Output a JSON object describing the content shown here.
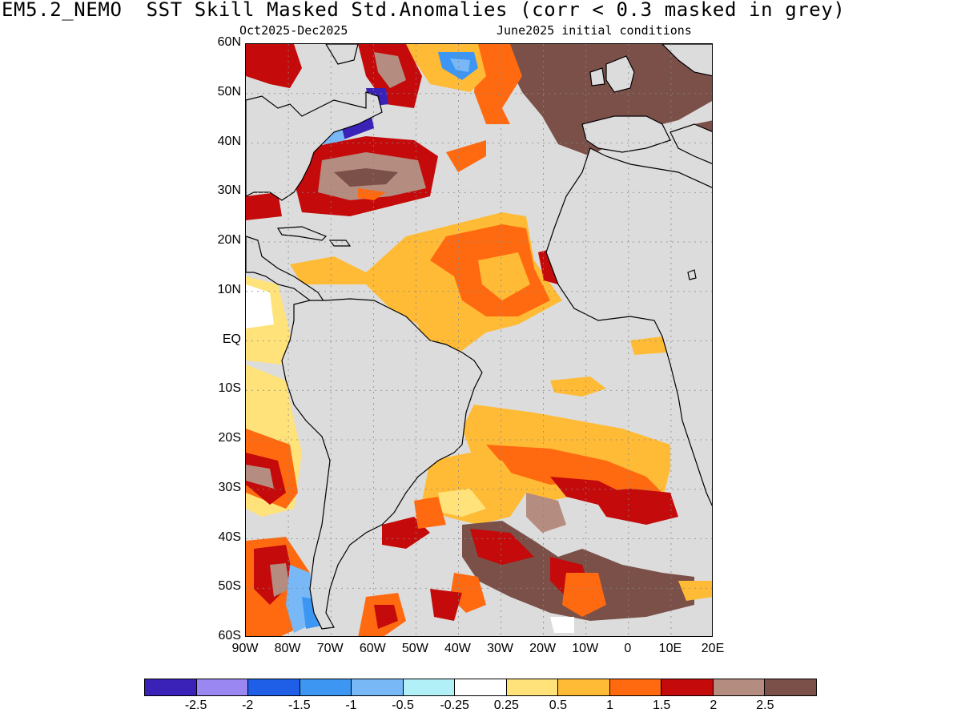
{
  "title": "EM5.2_NEMO  SST Skill Masked Std.Anomalies (corr < 0.3 masked in grey)",
  "subtitle_left": "Oct2025-Dec2025",
  "subtitle_right": "June2025 initial conditions",
  "lat_labels": [
    "60N",
    "50N",
    "40N",
    "30N",
    "20N",
    "10N",
    "EQ",
    "10S",
    "20S",
    "30S",
    "40S",
    "50S",
    "60S"
  ],
  "lon_labels": [
    "90W",
    "80W",
    "70W",
    "60W",
    "50W",
    "40W",
    "30W",
    "20W",
    "10W",
    "0",
    "10E",
    "20E"
  ],
  "colorbar": {
    "colors": [
      "#3a22b8",
      "#9b87f2",
      "#1f5ee6",
      "#3c96f2",
      "#78b8f7",
      "#b2f0f7",
      "#ffffff",
      "#ffe27a",
      "#ffbb35",
      "#ff6a10",
      "#c40a0a",
      "#b58c80",
      "#7a5048"
    ],
    "labels": [
      "-2.5",
      "-2",
      "-1.5",
      "-1",
      "-0.5",
      "-0.25",
      "0.25",
      "0.5",
      "1",
      "1.5",
      "2",
      "2.5"
    ]
  },
  "masked_color": "#dcdcdc"
}
